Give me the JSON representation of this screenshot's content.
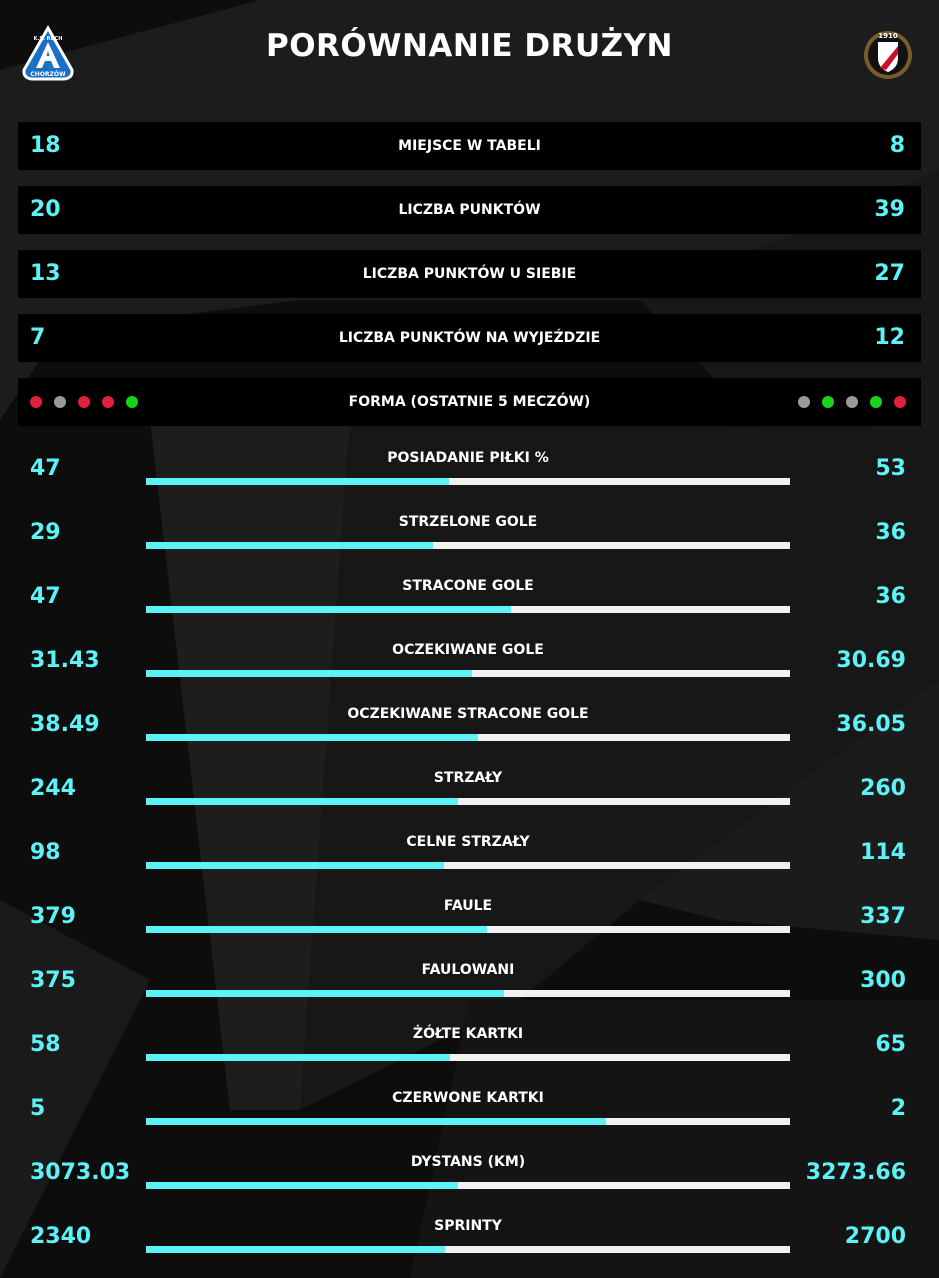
{
  "title": "PORÓWNANIE DRUŻYN",
  "colors": {
    "accent": "#5cf2f6",
    "bar_bg": "#f0f0f0",
    "background": "#0d0d0d",
    "win": "#19d319",
    "loss": "#e0203a",
    "draw": "#9a9a9a"
  },
  "crests": {
    "home": {
      "icon": "ruch-chorzow-crest-icon",
      "text_top": "K.S. RUCH",
      "text_bottom": "CHORZÓW"
    },
    "away": {
      "icon": "widzew-lodz-crest-icon",
      "text": "1910"
    }
  },
  "table_rows": [
    {
      "label": "MIEJSCE W TABELI",
      "home": "18",
      "away": "8"
    },
    {
      "label": "LICZBA PUNKTÓW",
      "home": "20",
      "away": "39"
    },
    {
      "label": "LICZBA PUNKTÓW U SIEBIE",
      "home": "13",
      "away": "27"
    },
    {
      "label": "LICZBA PUNKTÓW NA WYJEŹDZIE",
      "home": "7",
      "away": "12"
    }
  ],
  "form": {
    "label": "FORMA (OSTATNIE 5 MECZÓW)",
    "home": [
      "L",
      "D",
      "L",
      "L",
      "W"
    ],
    "away": [
      "D",
      "W",
      "D",
      "W",
      "L"
    ]
  },
  "stats": [
    {
      "label": "POSIADANIE PIŁKI %",
      "home": "47",
      "away": "53",
      "share": 0.47
    },
    {
      "label": "STRZELONE GOLE",
      "home": "29",
      "away": "36",
      "share": 0.446
    },
    {
      "label": "STRACONE GOLE",
      "home": "47",
      "away": "36",
      "share": 0.566
    },
    {
      "label": "OCZEKIWANE GOLE",
      "home": "31.43",
      "away": "30.69",
      "share": 0.506
    },
    {
      "label": "OCZEKIWANE STRACONE GOLE",
      "home": "38.49",
      "away": "36.05",
      "share": 0.516
    },
    {
      "label": "STRZAŁY",
      "home": "244",
      "away": "260",
      "share": 0.484
    },
    {
      "label": "CELNE STRZAŁY",
      "home": "98",
      "away": "114",
      "share": 0.462
    },
    {
      "label": "FAULE",
      "home": "379",
      "away": "337",
      "share": 0.529
    },
    {
      "label": "FAULOWANI",
      "home": "375",
      "away": "300",
      "share": 0.556
    },
    {
      "label": "ŻÓŁTE KARTKI",
      "home": "58",
      "away": "65",
      "share": 0.472
    },
    {
      "label": "CZERWONE KARTKI",
      "home": "5",
      "away": "2",
      "share": 0.714
    },
    {
      "label": "DYSTANS (KM)",
      "home": "3073.03",
      "away": "3273.66",
      "share": 0.484
    },
    {
      "label": "SPRINTY",
      "home": "2340",
      "away": "2700",
      "share": 0.464
    }
  ]
}
